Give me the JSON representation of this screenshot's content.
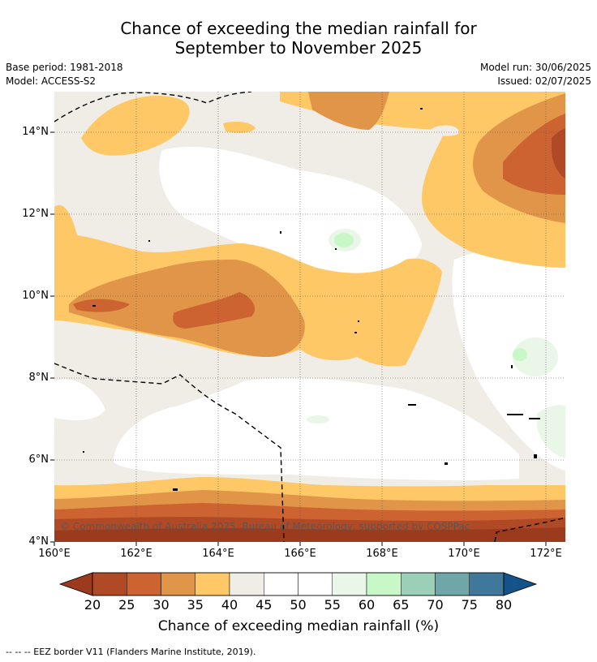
{
  "title_line1": "Chance of exceeding the median rainfall for",
  "title_line2": "September to November 2025",
  "base_period": "Base period: 1981-2018",
  "model": "Model: ACCESS-S2",
  "model_run": "Model run: 30/06/2025",
  "issued": "Issued: 02/07/2025",
  "copyright": "© Commonwealth of Australia 2025, Bureau of Meteorology, supported by COSPPac",
  "lat_labels": [
    "14°N",
    "12°N",
    "10°N",
    "8°N",
    "6°N",
    "4°N"
  ],
  "lon_labels": [
    "160°E",
    "162°E",
    "164°E",
    "166°E",
    "168°E",
    "170°E",
    "172°E"
  ],
  "colorbar": {
    "ticks": [
      "20",
      "25",
      "30",
      "35",
      "40",
      "45",
      "50",
      "55",
      "60",
      "65",
      "70",
      "75",
      "80"
    ],
    "colors": [
      "#9c3a1e",
      "#b04a26",
      "#cc6331",
      "#e09549",
      "#fdc865",
      "#f0ece6",
      "#ffffff",
      "#ffffff",
      "#eaf6e8",
      "#c8f7c8",
      "#9bcfb7",
      "#6fa6a7",
      "#3f789b",
      "#14538a"
    ],
    "label": "Chance of exceeding median rainfall (%)"
  },
  "footnote": "-- -- -- EEZ border V11 (Flanders Marine Institute, 2019)."
}
